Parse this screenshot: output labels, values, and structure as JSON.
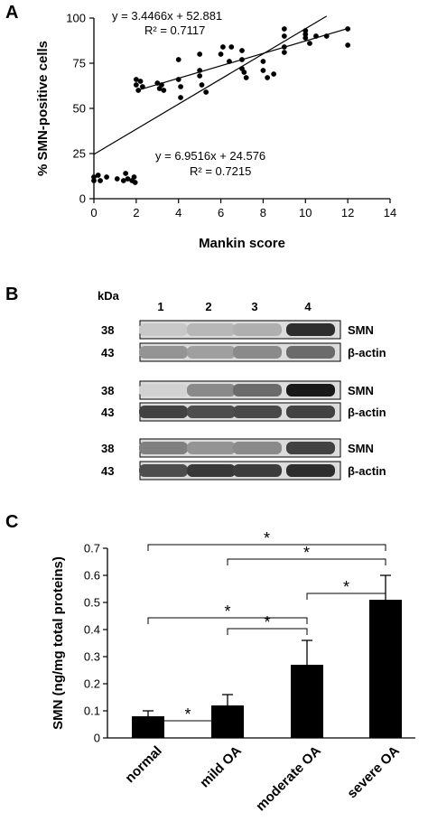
{
  "panels": {
    "a": {
      "letter": "A"
    },
    "b": {
      "letter": "B"
    },
    "c": {
      "letter": "C"
    }
  },
  "chart_data": [
    {
      "type": "scatter",
      "panel": "A",
      "xlabel": "Mankin score",
      "ylabel": "% SMN-positive cells",
      "xlim": [
        0,
        14
      ],
      "ylim": [
        0,
        100
      ],
      "xticks": [
        0,
        2,
        4,
        6,
        8,
        10,
        12,
        14
      ],
      "yticks": [
        0,
        25,
        50,
        75,
        100
      ],
      "grid": false,
      "points": [
        {
          "x": 0,
          "y": 10
        },
        {
          "x": 0,
          "y": 12
        },
        {
          "x": 0.2,
          "y": 13
        },
        {
          "x": 0.3,
          "y": 10
        },
        {
          "x": 0.6,
          "y": 12
        },
        {
          "x": 1.1,
          "y": 11
        },
        {
          "x": 1.4,
          "y": 10
        },
        {
          "x": 1.5,
          "y": 14
        },
        {
          "x": 1.6,
          "y": 11
        },
        {
          "x": 1.8,
          "y": 10
        },
        {
          "x": 1.9,
          "y": 12
        },
        {
          "x": 1.95,
          "y": 9
        },
        {
          "x": 2,
          "y": 66
        },
        {
          "x": 2,
          "y": 63
        },
        {
          "x": 2.1,
          "y": 60
        },
        {
          "x": 2.2,
          "y": 65
        },
        {
          "x": 2.3,
          "y": 62
        },
        {
          "x": 3,
          "y": 64
        },
        {
          "x": 3.1,
          "y": 61
        },
        {
          "x": 3.2,
          "y": 63
        },
        {
          "x": 3.3,
          "y": 60
        },
        {
          "x": 4,
          "y": 77
        },
        {
          "x": 4,
          "y": 66
        },
        {
          "x": 4.1,
          "y": 62
        },
        {
          "x": 4.1,
          "y": 56
        },
        {
          "x": 5,
          "y": 80
        },
        {
          "x": 5,
          "y": 71
        },
        {
          "x": 5,
          "y": 68
        },
        {
          "x": 5.1,
          "y": 63
        },
        {
          "x": 5.3,
          "y": 59
        },
        {
          "x": 6,
          "y": 80
        },
        {
          "x": 6.1,
          "y": 84
        },
        {
          "x": 6.4,
          "y": 76
        },
        {
          "x": 6.5,
          "y": 84
        },
        {
          "x": 7,
          "y": 82
        },
        {
          "x": 7,
          "y": 77
        },
        {
          "x": 7,
          "y": 72
        },
        {
          "x": 7.1,
          "y": 70
        },
        {
          "x": 7.2,
          "y": 67
        },
        {
          "x": 8,
          "y": 76
        },
        {
          "x": 8,
          "y": 71
        },
        {
          "x": 8.2,
          "y": 67
        },
        {
          "x": 8.5,
          "y": 69
        },
        {
          "x": 9,
          "y": 94
        },
        {
          "x": 9,
          "y": 90
        },
        {
          "x": 9,
          "y": 84
        },
        {
          "x": 9,
          "y": 81
        },
        {
          "x": 10,
          "y": 93
        },
        {
          "x": 10,
          "y": 91
        },
        {
          "x": 10,
          "y": 89
        },
        {
          "x": 10.2,
          "y": 86
        },
        {
          "x": 10.5,
          "y": 90
        },
        {
          "x": 11,
          "y": 90
        },
        {
          "x": 12,
          "y": 94
        },
        {
          "x": 12,
          "y": 85
        }
      ],
      "fits": [
        {
          "equation": "y = 3.4466x + 52.881",
          "r2": "R² = 0.7117",
          "slope": 3.4466,
          "intercept": 52.881,
          "x_range": [
            2,
            12
          ]
        },
        {
          "equation": "y = 6.9516x + 24.576",
          "r2": "R² = 0.7215",
          "slope": 6.9516,
          "intercept": 24.576,
          "x_range": [
            0,
            11
          ]
        }
      ]
    },
    {
      "type": "bar",
      "panel": "C",
      "categories": [
        "normal",
        "mild OA",
        "moderate OA",
        "severe OA"
      ],
      "values": [
        0.08,
        0.12,
        0.27,
        0.51
      ],
      "errors": [
        0.02,
        0.04,
        0.09,
        0.09
      ],
      "ylabel": "SMN (ng/mg total proteins)",
      "xlabel": "",
      "ylim": [
        0,
        0.7
      ],
      "yticks": [
        0,
        0.1,
        0.2,
        0.3,
        0.4,
        0.5,
        0.6,
        0.7
      ],
      "significance": [
        {
          "from": 0,
          "to": 1,
          "label": "*"
        },
        {
          "from": 1,
          "to": 2,
          "label": "*"
        },
        {
          "from": 0,
          "to": 2,
          "label": "*"
        },
        {
          "from": 2,
          "to": 3,
          "label": "*"
        },
        {
          "from": 1,
          "to": 3,
          "label": "*"
        },
        {
          "from": 0,
          "to": 3,
          "label": "*"
        }
      ]
    }
  ],
  "blot": {
    "kda_label": "kDa",
    "lanes": [
      "1",
      "2",
      "3",
      "4"
    ],
    "groups": [
      {
        "rows": [
          {
            "kda": "38",
            "protein": "SMN",
            "intensity": [
              0.1,
              0.18,
              0.22,
              0.85
            ]
          },
          {
            "kda": "43",
            "protein": "β-actin",
            "intensity": [
              0.35,
              0.3,
              0.4,
              0.55
            ]
          }
        ]
      },
      {
        "rows": [
          {
            "kda": "38",
            "protein": "SMN",
            "intensity": [
              0.05,
              0.4,
              0.55,
              0.95
            ]
          },
          {
            "kda": "43",
            "protein": "β-actin",
            "intensity": [
              0.75,
              0.7,
              0.72,
              0.75
            ]
          }
        ]
      },
      {
        "rows": [
          {
            "kda": "38",
            "protein": "SMN",
            "intensity": [
              0.45,
              0.35,
              0.4,
              0.75
            ]
          },
          {
            "kda": "43",
            "protein": "β-actin",
            "intensity": [
              0.7,
              0.8,
              0.78,
              0.85
            ]
          }
        ]
      }
    ]
  }
}
